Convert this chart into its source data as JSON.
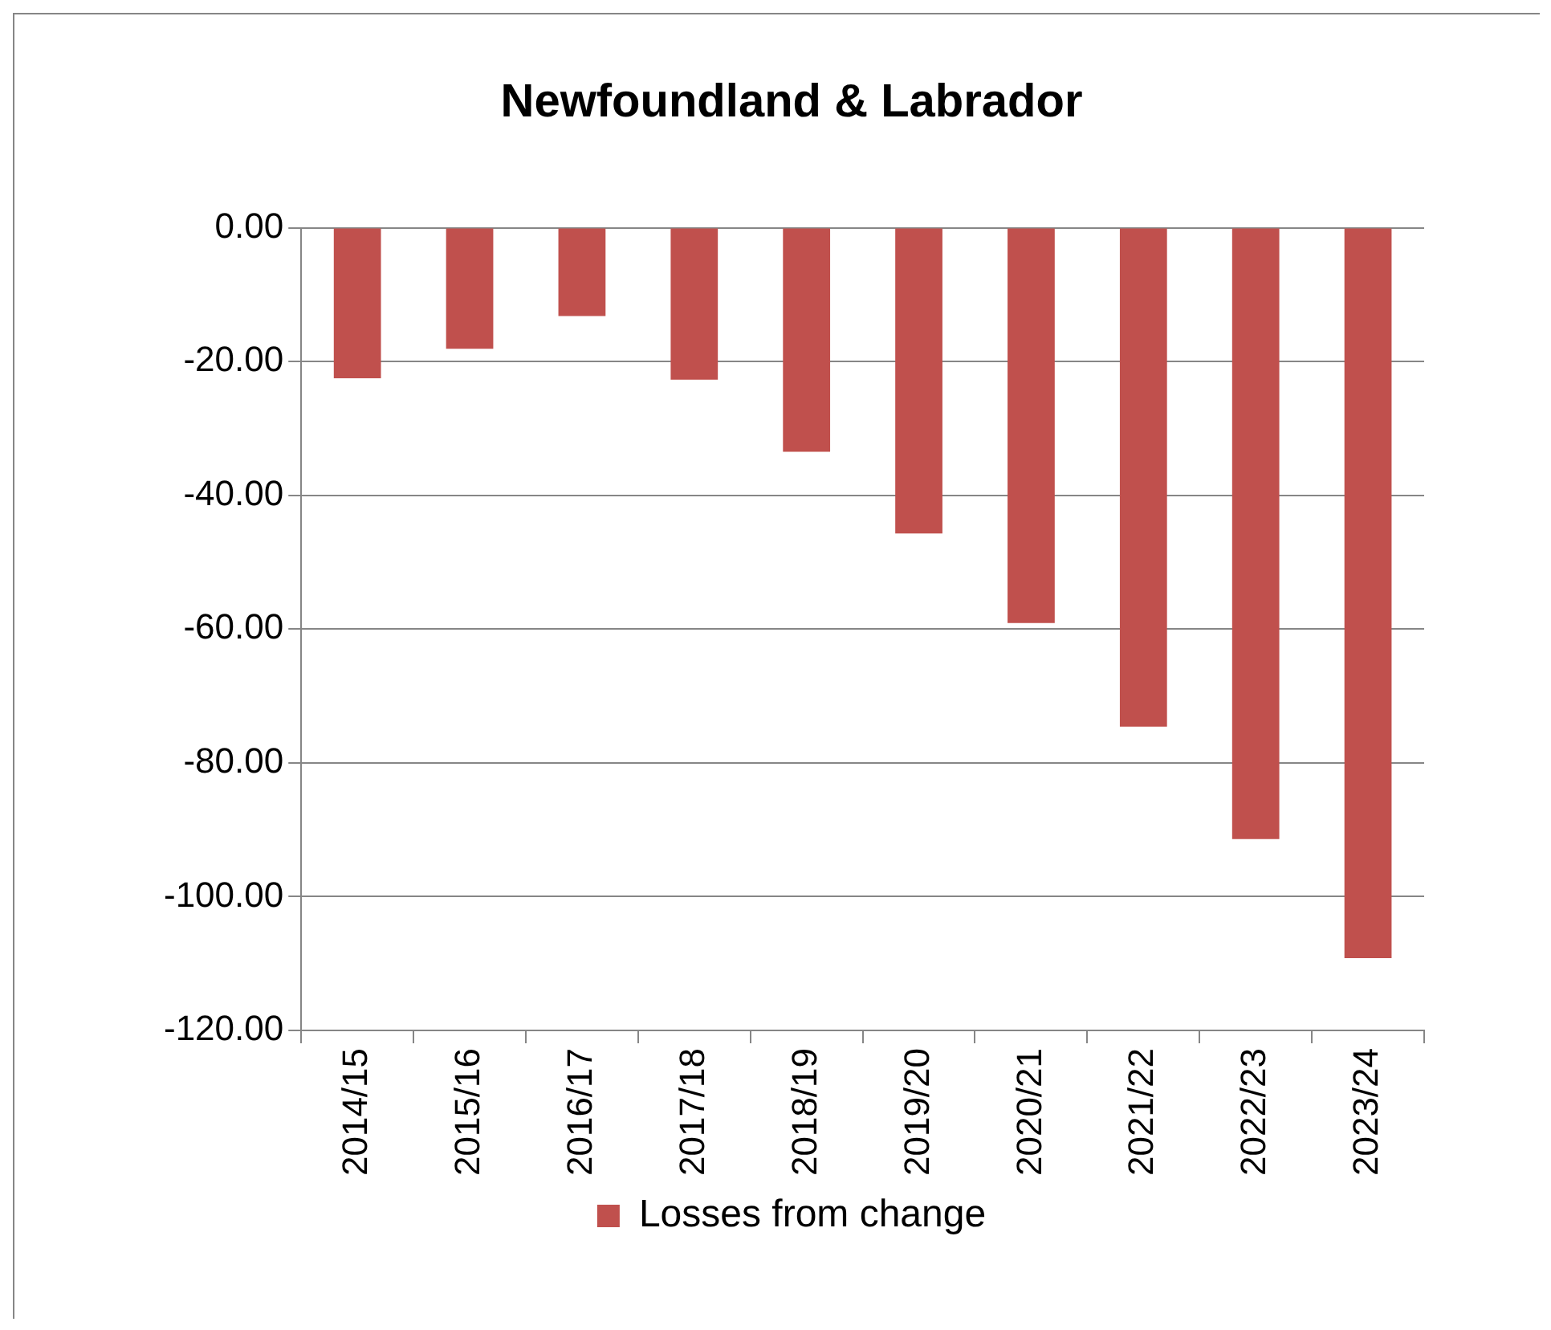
{
  "chart_data": {
    "type": "bar",
    "title": "Newfoundland & Labrador",
    "categories": [
      "2014/15",
      "2015/16",
      "2016/17",
      "2017/18",
      "2018/19",
      "2019/20",
      "2020/21",
      "2021/22",
      "2022/23",
      "2023/24"
    ],
    "series": [
      {
        "name": "Losses from change",
        "color": "#c0504d",
        "values": [
          -22.5,
          -18.1,
          -13.2,
          -22.7,
          -33.5,
          -45.7,
          -59.1,
          -74.6,
          -91.4,
          -109.2
        ]
      }
    ],
    "ylim": [
      -120,
      0
    ],
    "yticks": [
      {
        "value": 0,
        "label": "0.00"
      },
      {
        "value": -20,
        "label": "-20.00"
      },
      {
        "value": -40,
        "label": "-40.00"
      },
      {
        "value": -60,
        "label": "-60.00"
      },
      {
        "value": -80,
        "label": "-80.00"
      },
      {
        "value": -100,
        "label": "-100.00"
      },
      {
        "value": -120,
        "label": "-120.00"
      }
    ],
    "grid": "y",
    "legend": "bottom"
  }
}
